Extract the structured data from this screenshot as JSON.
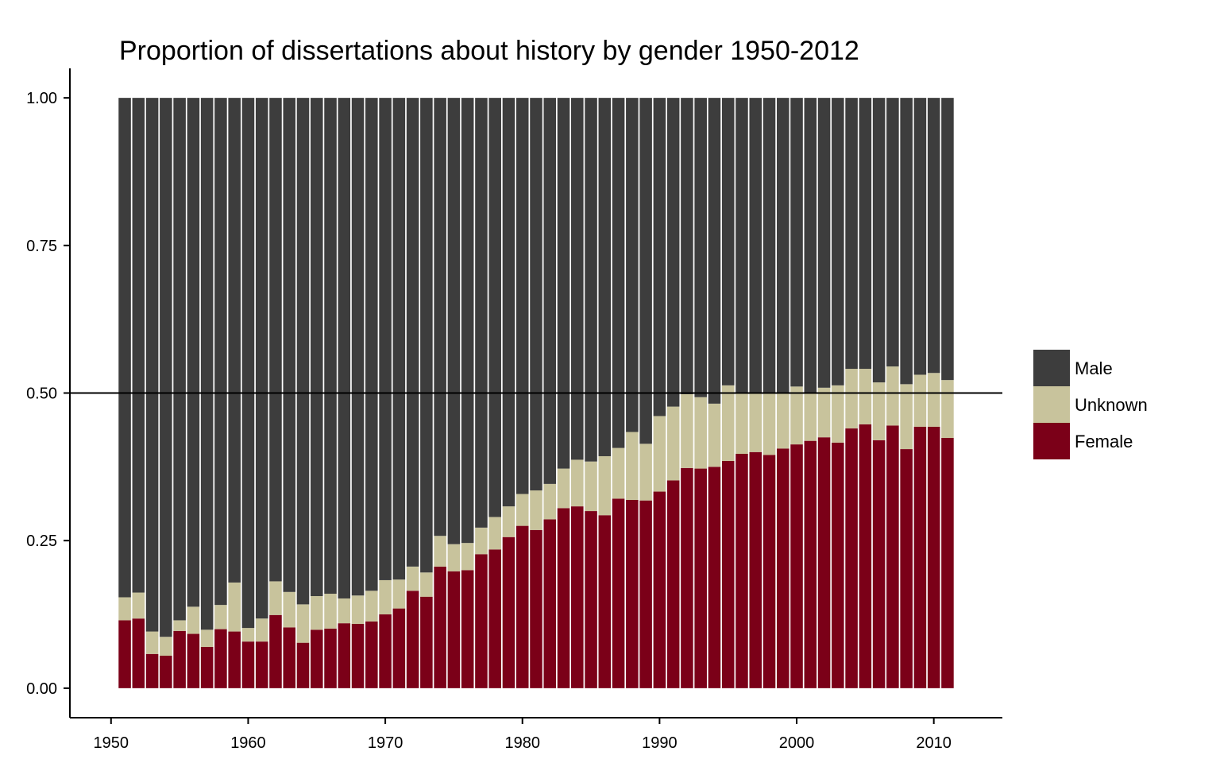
{
  "chart_data": {
    "type": "bar",
    "stacked": true,
    "normalized": true,
    "title": "Proportion of dissertations about history by gender 1950-2012",
    "xlabel": "",
    "ylabel": "",
    "xlim": [
      1947,
      2015
    ],
    "ylim": [
      -0.05,
      1.05
    ],
    "x_ticks": [
      1950,
      1960,
      1970,
      1980,
      1990,
      2000,
      2010
    ],
    "x_tick_labels": [
      "1950",
      "1960",
      "1970",
      "1980",
      "1990",
      "2000",
      "2010"
    ],
    "y_ticks": [
      0,
      0.25,
      0.5,
      0.75,
      1.0
    ],
    "y_tick_labels": [
      "0.00",
      "0.25",
      "0.50",
      "0.75",
      "1.00"
    ],
    "reference_line": 0.5,
    "grid": false,
    "legend_position": "right",
    "legend_order": [
      "Male",
      "Unknown",
      "Female"
    ],
    "x": [
      1951,
      1952,
      1953,
      1954,
      1955,
      1956,
      1957,
      1958,
      1959,
      1960,
      1961,
      1962,
      1963,
      1964,
      1965,
      1966,
      1967,
      1968,
      1969,
      1970,
      1971,
      1972,
      1973,
      1974,
      1975,
      1976,
      1977,
      1978,
      1979,
      1980,
      1981,
      1982,
      1983,
      1984,
      1985,
      1986,
      1987,
      1988,
      1989,
      1990,
      1991,
      1992,
      1993,
      1994,
      1995,
      1996,
      1997,
      1998,
      1999,
      2000,
      2001,
      2002,
      2003,
      2004,
      2005,
      2006,
      2007,
      2008,
      2009,
      2010,
      2011
    ],
    "series": [
      {
        "name": "Female",
        "color": "#7b0018",
        "values": [
          0.115,
          0.118,
          0.058,
          0.055,
          0.097,
          0.092,
          0.07,
          0.1,
          0.096,
          0.079,
          0.079,
          0.124,
          0.103,
          0.077,
          0.099,
          0.101,
          0.11,
          0.109,
          0.113,
          0.125,
          0.135,
          0.165,
          0.155,
          0.206,
          0.198,
          0.2,
          0.227,
          0.235,
          0.256,
          0.275,
          0.268,
          0.286,
          0.305,
          0.308,
          0.3,
          0.293,
          0.321,
          0.319,
          0.318,
          0.333,
          0.352,
          0.373,
          0.372,
          0.375,
          0.385,
          0.397,
          0.4,
          0.395,
          0.406,
          0.413,
          0.419,
          0.425,
          0.416,
          0.44,
          0.447,
          0.42,
          0.445,
          0.405,
          0.443,
          0.443,
          0.424
        ]
      },
      {
        "name": "Unknown",
        "color": "#c8c39c",
        "values": [
          0.039,
          0.044,
          0.038,
          0.032,
          0.018,
          0.046,
          0.029,
          0.041,
          0.083,
          0.023,
          0.039,
          0.057,
          0.06,
          0.065,
          0.057,
          0.059,
          0.042,
          0.048,
          0.052,
          0.058,
          0.049,
          0.041,
          0.041,
          0.052,
          0.046,
          0.046,
          0.045,
          0.055,
          0.052,
          0.054,
          0.067,
          0.06,
          0.067,
          0.079,
          0.084,
          0.1,
          0.086,
          0.115,
          0.096,
          0.128,
          0.125,
          0.125,
          0.121,
          0.107,
          0.128,
          0.102,
          0.1,
          0.105,
          0.094,
          0.098,
          0.081,
          0.084,
          0.097,
          0.101,
          0.094,
          0.098,
          0.1,
          0.11,
          0.088,
          0.091,
          0.098
        ]
      },
      {
        "name": "Male",
        "color": "#3d3d3d",
        "values": [
          0.846,
          0.838,
          0.904,
          0.913,
          0.885,
          0.862,
          0.901,
          0.859,
          0.821,
          0.898,
          0.882,
          0.819,
          0.837,
          0.858,
          0.844,
          0.84,
          0.848,
          0.843,
          0.835,
          0.817,
          0.816,
          0.794,
          0.804,
          0.742,
          0.756,
          0.754,
          0.728,
          0.71,
          0.692,
          0.671,
          0.665,
          0.654,
          0.628,
          0.613,
          0.616,
          0.607,
          0.593,
          0.566,
          0.586,
          0.539,
          0.523,
          0.502,
          0.507,
          0.518,
          0.487,
          0.501,
          0.5,
          0.5,
          0.5,
          0.489,
          0.5,
          0.491,
          0.487,
          0.459,
          0.459,
          0.482,
          0.455,
          0.485,
          0.469,
          0.466,
          0.478
        ]
      }
    ]
  }
}
